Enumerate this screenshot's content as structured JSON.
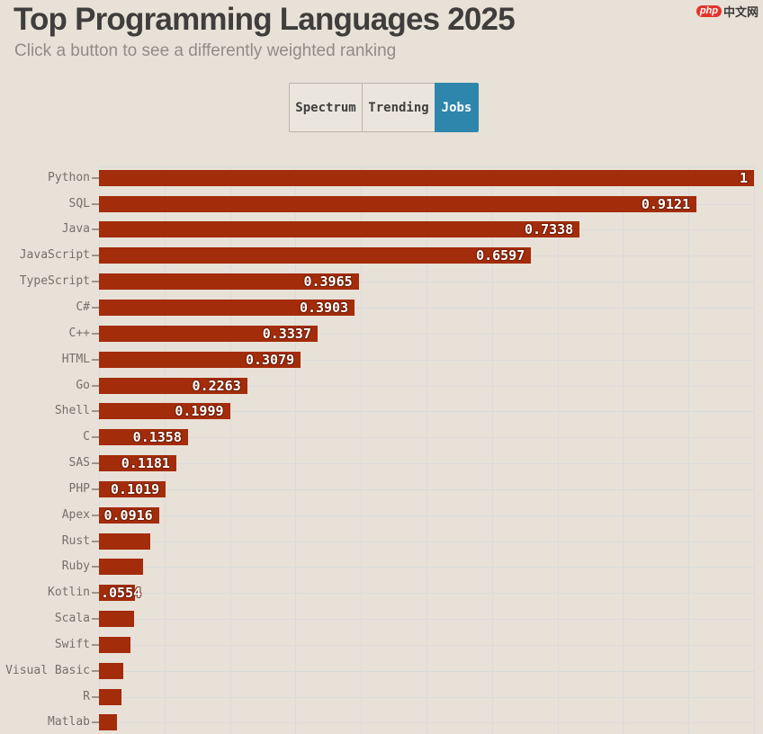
{
  "header": {
    "title": "Top Programming Languages 2025",
    "subtitle": "Click a button to see a differently weighted ranking"
  },
  "logo": {
    "badge": "php",
    "text": "中文网"
  },
  "toolbar": {
    "buttons": [
      {
        "label": "Spectrum",
        "active": false
      },
      {
        "label": "Trending",
        "active": false
      },
      {
        "label": "Jobs",
        "active": true
      }
    ]
  },
  "colors": {
    "background": "#e8e1d7",
    "bar": "#a32c0b",
    "active_button": "#2e86ad",
    "gridline": "#d9dcdd",
    "title_text": "#3f3e3c",
    "subtitle_text": "#8f8c86",
    "category_label": "#73706b",
    "value_label": "#ffffff",
    "logo_red": "#e3342c"
  },
  "chart_data": {
    "type": "bar",
    "orientation": "horizontal",
    "title": "Top Programming Languages 2025",
    "xlabel": "",
    "ylabel": "",
    "xlim": [
      0,
      1
    ],
    "gridline_interval": 0.1,
    "grid": true,
    "legend": false,
    "categories": [
      "Python",
      "SQL",
      "Java",
      "JavaScript",
      "TypeScript",
      "C#",
      "C++",
      "HTML",
      "Go",
      "Shell",
      "C",
      "SAS",
      "PHP",
      "Apex",
      "Rust",
      "Ruby",
      "Kotlin",
      "Scala",
      "Swift",
      "Visual Basic",
      "R",
      "Matlab"
    ],
    "values": [
      1,
      0.9121,
      0.7338,
      0.6597,
      0.3965,
      0.3903,
      0.3337,
      0.3079,
      0.2263,
      0.1999,
      0.1358,
      0.1181,
      0.1019,
      0.0916,
      0.078,
      0.067,
      0.0554,
      0.054,
      0.048,
      0.037,
      0.034,
      0.027
    ],
    "value_labels": [
      "1",
      "0.9121",
      "0.7338",
      "0.6597",
      "0.3965",
      "0.3903",
      "0.3337",
      "0.3079",
      "0.2263",
      "0.1999",
      "0.1358",
      "0.1181",
      "0.1019",
      "0.0916",
      "",
      "",
      ".0554",
      "",
      "",
      "",
      "",
      ""
    ]
  }
}
